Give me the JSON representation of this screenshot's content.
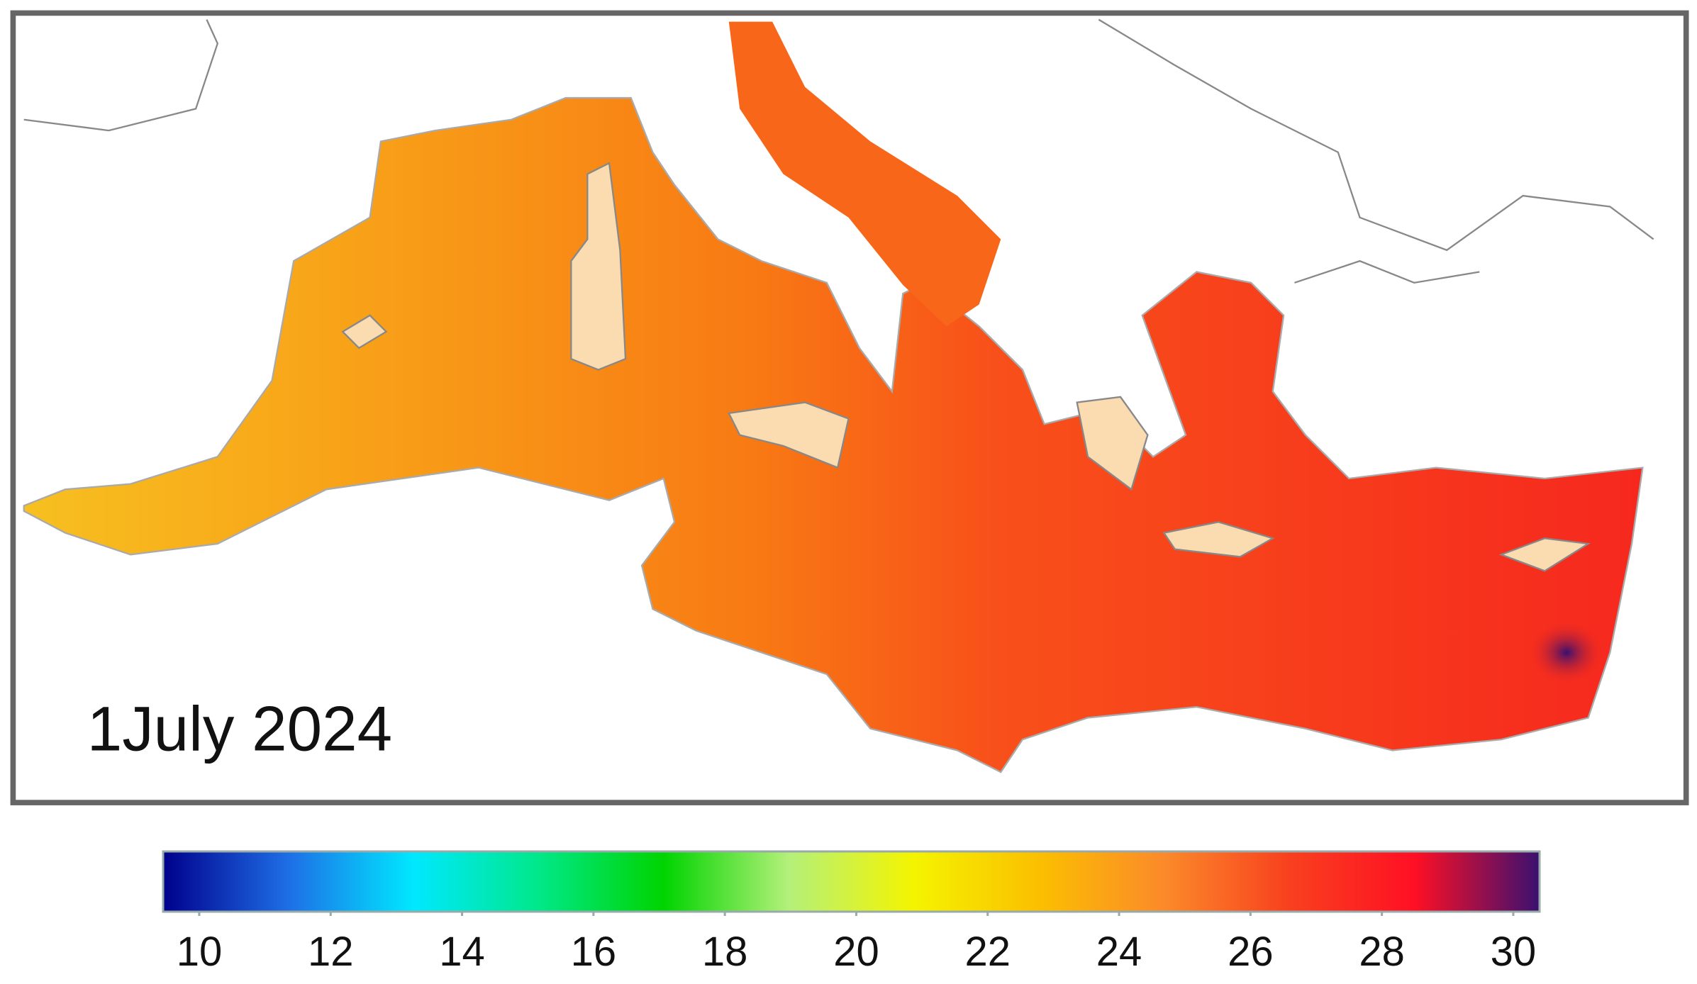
{
  "label": "1July 2024",
  "colorbar": {
    "lim": [
      9.45,
      30.4
    ],
    "ticks": [
      10,
      12,
      14,
      16,
      18,
      20,
      22,
      24,
      26,
      28,
      30
    ],
    "colors": [
      "#00008b",
      "#1e6ee6",
      "#00e8ff",
      "#00e88a",
      "#00d400",
      "#b4f07a",
      "#f4f400",
      "#fbbf00",
      "#fb8a2a",
      "#f8401e",
      "#ff1024",
      "#3a1070"
    ]
  }
}
